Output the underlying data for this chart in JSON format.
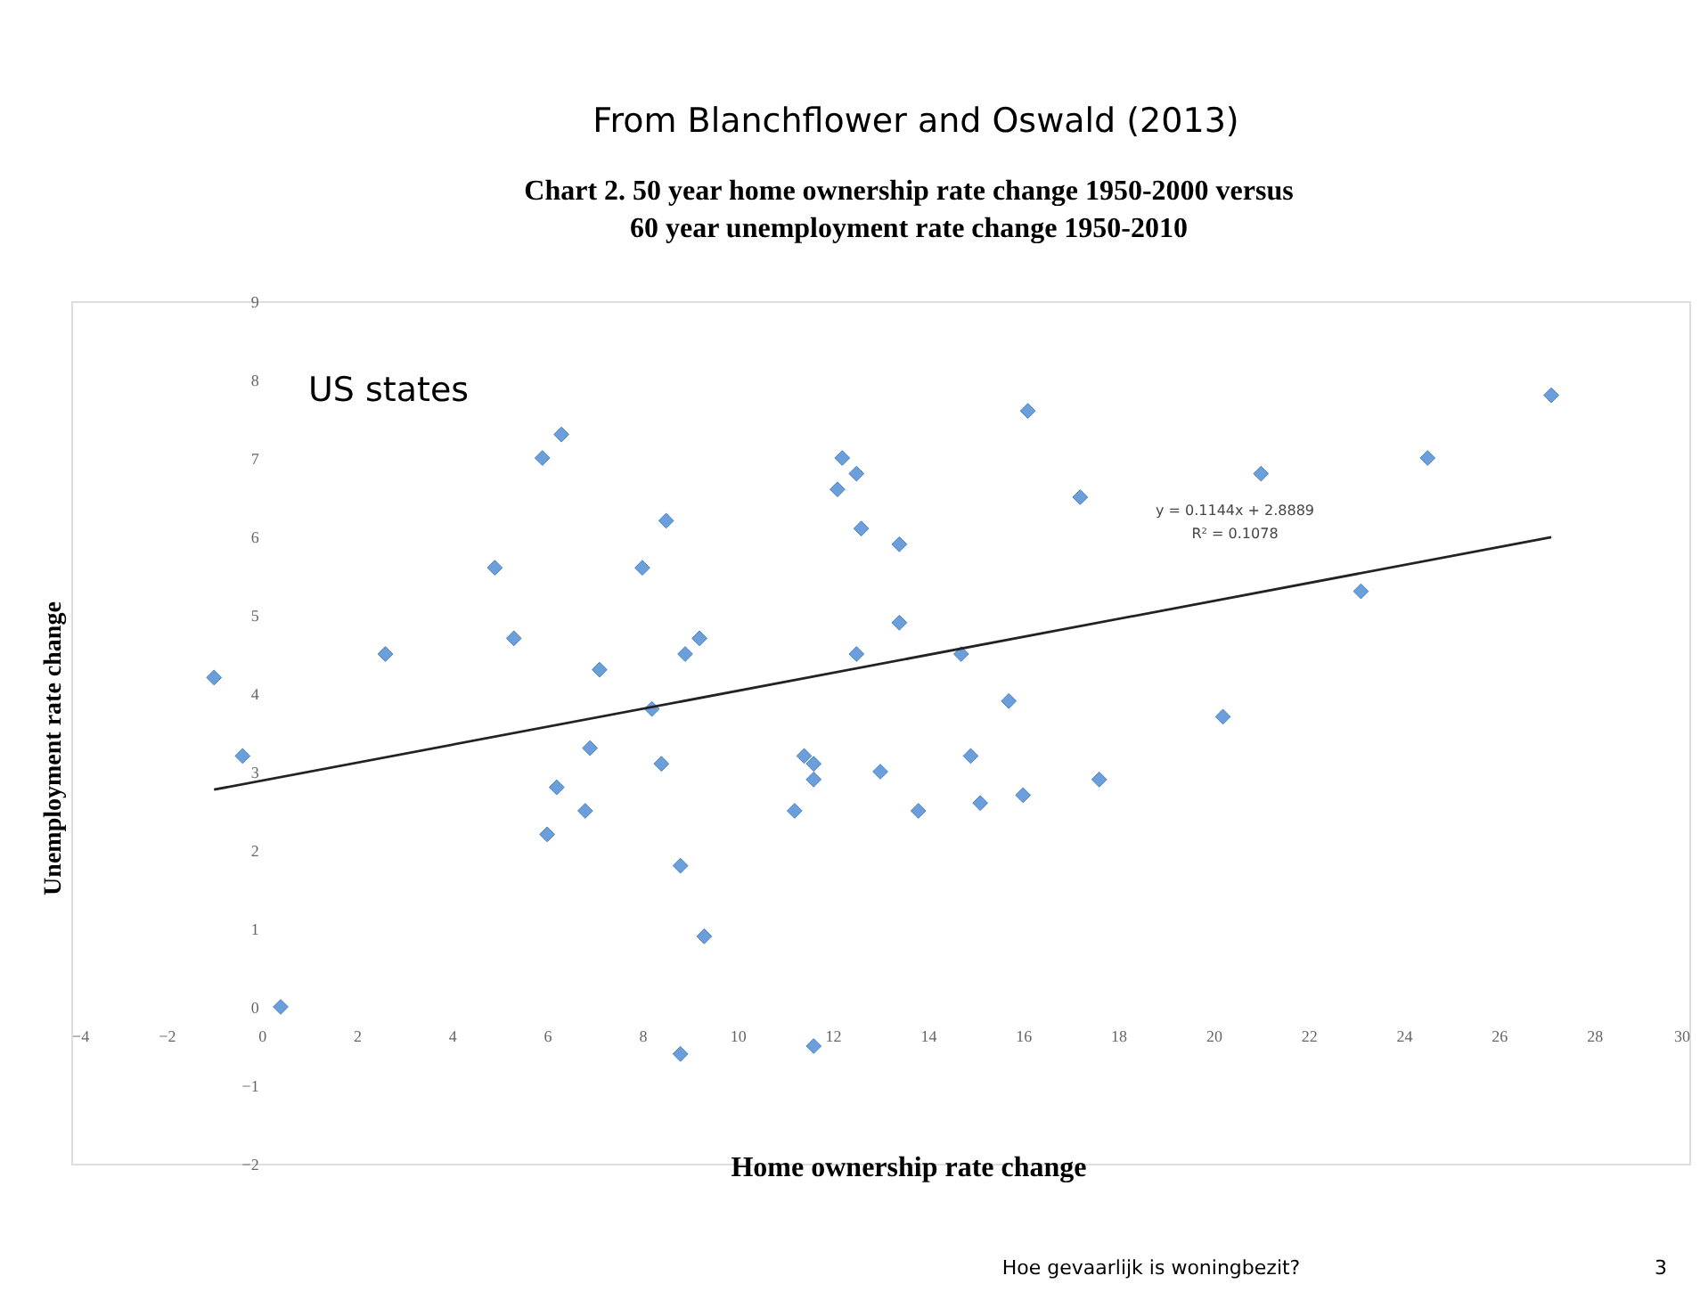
{
  "chart_data": {
    "type": "scatter",
    "title": [
      "Chart 2. 50 year home ownership rate change 1950-2000 versus",
      "60 year unemployment rate change 1950-2010"
    ],
    "xlabel": "Home ownership rate change",
    "ylabel": "Unemployment rate change",
    "annotations": [
      "From Blanchflower and Oswald (2013)",
      "US states",
      "y = 0.1144x + 2.8889",
      "R² = 0.1078",
      "Hoe gevaarlijk is woningbezit?",
      "3"
    ],
    "series": [
      {
        "color": "#6a9fdc",
        "marker": "diamond",
        "x": [
          -1,
          -0.4,
          0.4,
          2.6,
          4.9,
          5.3,
          5.9,
          6.3,
          6.0,
          6.2,
          6.8,
          6.9,
          7.1,
          8.0,
          8.2,
          8.4,
          8.5,
          8.8,
          8.8,
          8.9,
          9.2,
          9.3,
          11.2,
          11.4,
          11.6,
          11.6,
          11.6,
          12.1,
          12.2,
          12.5,
          12.6,
          12.5,
          13.0,
          13.4,
          13.4,
          13.8,
          14.7,
          14.9,
          15.1,
          15.7,
          16.0,
          16.1,
          17.2,
          17.6,
          20.2,
          21.0,
          23.1,
          24.5,
          27.1
        ],
        "values": [
          4.2,
          3.2,
          0,
          4.5,
          5.6,
          4.7,
          7.0,
          7.3,
          2.2,
          2.8,
          2.5,
          3.3,
          4.3,
          5.6,
          3.8,
          3.1,
          6.2,
          1.8,
          -0.6,
          4.5,
          4.7,
          0.9,
          2.5,
          3.2,
          3.1,
          2.9,
          -0.5,
          6.6,
          7.0,
          6.8,
          6.1,
          4.5,
          3.0,
          5.9,
          4.9,
          2.5,
          4.5,
          3.2,
          2.6,
          3.9,
          2.7,
          7.6,
          6.5,
          2.9,
          3.7,
          6.8,
          5.3,
          7.0,
          7.8
        ]
      },
      {
        "type": "line",
        "color": "#222222",
        "marker": "none",
        "x": [
          -1,
          27.1
        ],
        "values": [
          2.77,
          5.99
        ]
      }
    ],
    "xlim": [
      -4,
      30
    ],
    "xticks": [
      -4,
      -2,
      0,
      2,
      4,
      6,
      8,
      10,
      12,
      14,
      16,
      18,
      20,
      22,
      24,
      26,
      28,
      30
    ],
    "ylim": [
      -2,
      9
    ],
    "yticks": [
      -2,
      -1,
      0,
      1,
      2,
      3,
      4,
      5,
      6,
      7,
      8,
      9
    ],
    "grid": false,
    "legend": false
  }
}
